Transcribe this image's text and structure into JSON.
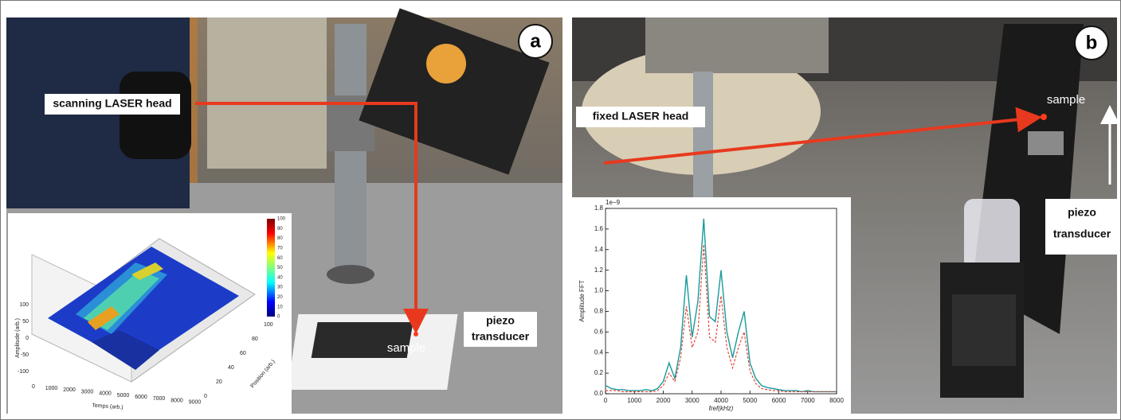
{
  "panel_a": {
    "label": "a",
    "laser_label": "scanning LASER head",
    "sample_label": "sample",
    "piezo_label": [
      "piezo",
      "transducer"
    ],
    "inset": {
      "z_label": "Amplitude (arb.)",
      "z_ticks": [
        100,
        50,
        0,
        -50,
        -100
      ],
      "x_label": "Temps (arb.)",
      "x_ticks": [
        0,
        1000,
        2000,
        3000,
        4000,
        5000,
        6000,
        7000,
        8000,
        9000
      ],
      "y_label": "Position (arb.)",
      "y_ticks": [
        0,
        20,
        40,
        60,
        80,
        100
      ],
      "colorbar_ticks": [
        0,
        10,
        20,
        30,
        40,
        50,
        60,
        70,
        80,
        90,
        100
      ]
    }
  },
  "panel_b": {
    "label": "b",
    "laser_label": "fixed LASER head",
    "sample_label": "sample",
    "piezo_label": [
      "piezo",
      "transducer"
    ]
  },
  "chart_data": {
    "type": "line",
    "y_label": "Amplitude FFT",
    "x_label": "fref(kHz)",
    "y_multiplier": "1e−9",
    "x": [
      0,
      200,
      400,
      600,
      800,
      1000,
      1200,
      1400,
      1600,
      1800,
      2000,
      2200,
      2400,
      2600,
      2800,
      3000,
      3200,
      3400,
      3600,
      3800,
      4000,
      4200,
      4400,
      4600,
      4800,
      5000,
      5200,
      5400,
      5600,
      5800,
      6000,
      6200,
      6400,
      6600,
      6800,
      7000,
      7200,
      7400,
      7600,
      7800,
      8000
    ],
    "series": [
      {
        "color": "#1a9a9a",
        "values": [
          0.08,
          0.05,
          0.04,
          0.04,
          0.03,
          0.03,
          0.03,
          0.04,
          0.03,
          0.05,
          0.12,
          0.3,
          0.15,
          0.45,
          1.15,
          0.55,
          0.9,
          1.7,
          0.75,
          0.7,
          1.2,
          0.6,
          0.35,
          0.6,
          0.8,
          0.3,
          0.15,
          0.08,
          0.06,
          0.05,
          0.04,
          0.03,
          0.03,
          0.03,
          0.02,
          0.03,
          0.02,
          0.02,
          0.02,
          0.02,
          0.02
        ]
      },
      {
        "color": "#e03a2a",
        "values": [
          0.03,
          0.03,
          0.03,
          0.02,
          0.02,
          0.02,
          0.02,
          0.02,
          0.02,
          0.03,
          0.08,
          0.2,
          0.12,
          0.35,
          0.85,
          0.45,
          0.6,
          1.45,
          0.55,
          0.5,
          0.95,
          0.45,
          0.25,
          0.45,
          0.6,
          0.22,
          0.1,
          0.05,
          0.04,
          0.03,
          0.03,
          0.02,
          0.02,
          0.02,
          0.02,
          0.02,
          0.02,
          0.02,
          0.02,
          0.02,
          0.02
        ]
      }
    ],
    "xlim": [
      0,
      8000
    ],
    "xticks": [
      0,
      1000,
      2000,
      3000,
      4000,
      5000,
      6000,
      7000,
      8000
    ],
    "ylim": [
      0,
      1.8
    ],
    "yticks": [
      {
        "value": 0,
        "label": "0.0"
      },
      0.2,
      0.4,
      0.6,
      0.8,
      {
        "value": 1,
        "label": "1.0"
      },
      1.2,
      1.4,
      1.6,
      1.8
    ]
  }
}
